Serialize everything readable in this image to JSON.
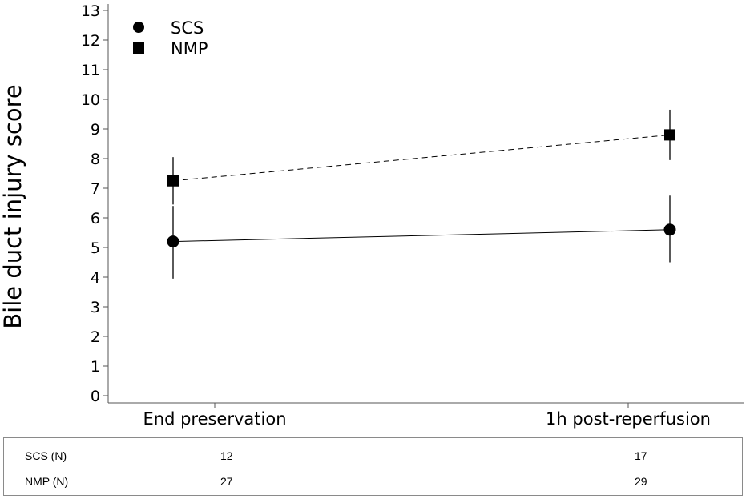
{
  "chart_data": {
    "type": "line",
    "ylabel": "Bile duct injury score",
    "xlabel": "",
    "categories": [
      "End preservation",
      "1h post-reperfusion"
    ],
    "ylim": [
      0,
      13
    ],
    "yticks": [
      0,
      1,
      2,
      3,
      4,
      5,
      6,
      7,
      8,
      9,
      10,
      11,
      12,
      13
    ],
    "grid": false,
    "legend_position": "top-left",
    "series": [
      {
        "name": "SCS",
        "marker": "circle",
        "line_style": "solid",
        "values": [
          5.2,
          5.6
        ],
        "error_low": [
          3.95,
          4.5
        ],
        "error_high": [
          6.4,
          6.75
        ]
      },
      {
        "name": "NMP",
        "marker": "square",
        "line_style": "dashed",
        "values": [
          7.25,
          8.8
        ],
        "error_low": [
          6.45,
          7.95
        ],
        "error_high": [
          8.05,
          9.65
        ]
      }
    ]
  },
  "n_table": {
    "rows": [
      {
        "label": "SCS (N)",
        "values": [
          "12",
          "17"
        ]
      },
      {
        "label": "NMP (N)",
        "values": [
          "27",
          "29"
        ]
      }
    ]
  }
}
